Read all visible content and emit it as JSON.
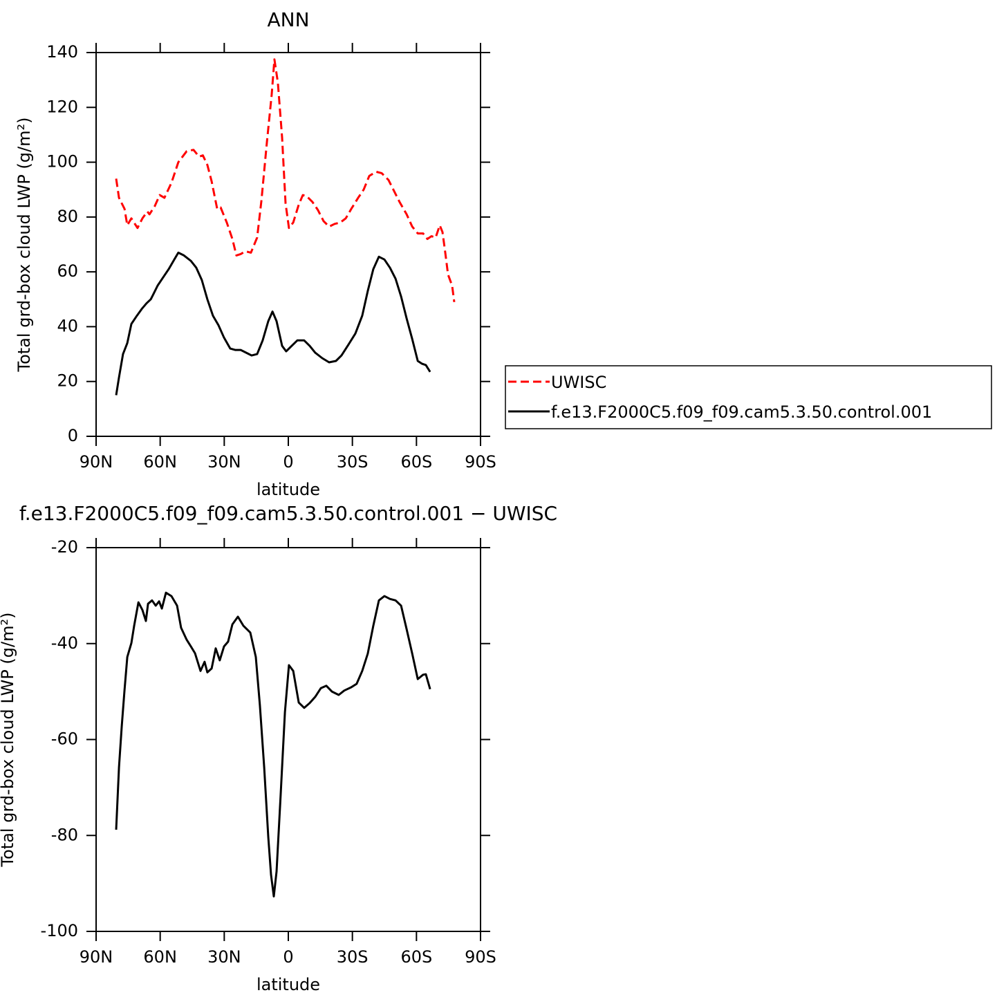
{
  "chart_data": [
    {
      "type": "line",
      "title": "ANN",
      "xlabel": "latitude",
      "ylabel": "Total grd-box cloud LWP (g/m²)",
      "xlim": [
        90,
        -90
      ],
      "xticks": [
        {
          "value": 90,
          "label": "90N"
        },
        {
          "value": 60,
          "label": "60N"
        },
        {
          "value": 30,
          "label": "30N"
        },
        0,
        {
          "value": -30,
          "label": "30S"
        },
        {
          "value": -60,
          "label": "60S"
        },
        {
          "value": -90,
          "label": "90S"
        }
      ],
      "ylim": [
        0,
        140
      ],
      "yticks": [
        0,
        20,
        40,
        60,
        80,
        100,
        120,
        140
      ],
      "legend": "right",
      "series": [
        {
          "name": "UWISC",
          "color": "#ff0000",
          "dash": true,
          "x": [
            80.6,
            79.3,
            76.7,
            75.4,
            73.5,
            70.6,
            68.3,
            66,
            65,
            62.5,
            60.2,
            58,
            54.7,
            51.5,
            47.6,
            44.4,
            41.8,
            40,
            37.9,
            35.9,
            33.3,
            31.7,
            28.8,
            26.2,
            24.3,
            22.3,
            20.1,
            17.5,
            14.6,
            12.6,
            10,
            7.8,
            6.5,
            4.9,
            2.9,
            1.3,
            -0.3,
            -2.3,
            -4.9,
            -6.8,
            -8.7,
            -11.3,
            -13.9,
            -16.5,
            -19.1,
            -21.7,
            -24.3,
            -26.9,
            -29.5,
            -32.7,
            -35.3,
            -37.9,
            -41.1,
            -43.7,
            -46.9,
            -49.5,
            -52.1,
            -55.4,
            -58,
            -60.6,
            -63.1,
            -65.1,
            -67,
            -69,
            -70.9,
            -72.2,
            -73.5,
            -74.8,
            -76.7,
            -77.7
          ],
          "values": [
            94,
            87,
            83,
            77,
            79.5,
            76,
            79.5,
            82,
            81,
            84,
            88,
            87,
            92.5,
            100,
            104,
            104.5,
            102,
            102.5,
            99,
            93,
            83,
            83.5,
            78,
            72,
            66,
            66.5,
            67.5,
            67,
            72.5,
            86,
            107.5,
            124.5,
            137.5,
            129,
            109,
            85,
            76,
            78,
            84.5,
            88,
            87.5,
            85.5,
            82.5,
            78.5,
            76.5,
            77.5,
            78,
            79.5,
            83,
            87,
            90,
            95,
            96.5,
            96,
            93.5,
            89.5,
            85.5,
            81,
            76.5,
            74,
            74,
            72,
            73,
            72.5,
            77,
            74.5,
            67,
            59,
            55,
            49
          ]
        },
        {
          "name": "f.e13.F2000C5.f09_f09.cam5.3.50.control.001",
          "color": "#000000",
          "dash": false,
          "x": [
            80.6,
            79.3,
            77.4,
            75.4,
            73.5,
            70.9,
            68.6,
            66.4,
            64.4,
            63.1,
            61.2,
            58.6,
            56,
            53.4,
            51.5,
            48.9,
            45.6,
            43.1,
            40.5,
            37.9,
            35.3,
            32.7,
            30.1,
            27.2,
            24.9,
            22.3,
            19.7,
            17.2,
            14.6,
            12,
            9.4,
            7.4,
            5.5,
            2.9,
            1,
            -1.6,
            -4.2,
            -7.4,
            -10,
            -12.6,
            -15.9,
            -19.1,
            -22.3,
            -24.9,
            -28.2,
            -31.4,
            -34.6,
            -37.2,
            -39.8,
            -42.4,
            -45,
            -47.6,
            -50.2,
            -52.8,
            -55.4,
            -58,
            -60.6,
            -62.5,
            -64.4,
            -66.4
          ],
          "values": [
            15,
            21.5,
            30,
            34,
            41,
            44,
            46.5,
            48.5,
            50,
            52,
            55,
            58,
            61,
            64.5,
            67,
            66,
            64,
            61.5,
            57,
            50,
            44,
            40.5,
            36,
            32,
            31.5,
            31.5,
            30.5,
            29.5,
            30,
            35,
            42,
            45.5,
            42,
            33,
            31,
            33,
            35,
            35,
            33,
            30.5,
            28.5,
            27,
            27.5,
            29.5,
            33.5,
            37.5,
            44,
            53,
            61,
            65.5,
            64.5,
            61.5,
            57.5,
            51,
            43,
            35.5,
            27.5,
            26.5,
            26,
            23.5
          ]
        }
      ]
    },
    {
      "type": "line",
      "title": "f.e13.F2000C5.f09_f09.cam5.3.50.control.001 − UWISC",
      "xlabel": "latitude",
      "ylabel": "Total grd-box cloud LWP (g/m²)",
      "xlim": [
        90,
        -90
      ],
      "xticks": [
        {
          "value": 90,
          "label": "90N"
        },
        {
          "value": 60,
          "label": "60N"
        },
        {
          "value": 30,
          "label": "30N"
        },
        0,
        {
          "value": -30,
          "label": "30S"
        },
        {
          "value": -60,
          "label": "60S"
        },
        {
          "value": -90,
          "label": "90S"
        }
      ],
      "ylim": [
        -100,
        -20
      ],
      "yticks": [
        -100,
        -80,
        -60,
        -40,
        -20
      ],
      "color": "#000000",
      "x": [
        80.6,
        79.3,
        78,
        76.7,
        75.4,
        73.5,
        72.2,
        70.2,
        68.3,
        66.7,
        65.7,
        63.8,
        62.1,
        60.5,
        59.2,
        57.3,
        54.7,
        52.1,
        50.2,
        47.6,
        45.6,
        43.7,
        41.1,
        39.2,
        37.9,
        35.9,
        34,
        32.1,
        30.1,
        28.2,
        26.2,
        23.6,
        21,
        17.8,
        15.2,
        13.3,
        11.3,
        9.4,
        8.1,
        6.8,
        5.5,
        3.6,
        1.6,
        -0.3,
        -2.3,
        -4.9,
        -7.4,
        -10,
        -12.6,
        -15.2,
        -17.8,
        -20.4,
        -23.6,
        -26.2,
        -29.5,
        -32,
        -34.6,
        -37.2,
        -39.8,
        -42.4,
        -45,
        -47.6,
        -50.2,
        -52.8,
        -55.4,
        -58,
        -60.6,
        -63.1,
        -64.4,
        -66.4
      ],
      "values": [
        -78.8,
        -65.8,
        -57.2,
        -49.7,
        -42.8,
        -39.9,
        -36.3,
        -31.4,
        -33,
        -35.3,
        -31.7,
        -31,
        -32.1,
        -31.2,
        -32.7,
        -29.4,
        -30.1,
        -32.1,
        -36.7,
        -39.2,
        -40.6,
        -42,
        -45.7,
        -43.8,
        -46,
        -45.2,
        -41,
        -43.5,
        -40.6,
        -39.6,
        -36,
        -34.4,
        -36.3,
        -37.7,
        -42.8,
        -52.9,
        -65.8,
        -80.3,
        -88.2,
        -92.7,
        -87.5,
        -71.6,
        -54.3,
        -44.5,
        -45.7,
        -52.3,
        -53.4,
        -52.4,
        -51.1,
        -49.3,
        -48.8,
        -50,
        -50.7,
        -49.8,
        -49.1,
        -48.4,
        -45.7,
        -42.1,
        -36.3,
        -31,
        -30.1,
        -30.7,
        -31,
        -32.1,
        -37,
        -42.1,
        -47.4,
        -46.5,
        -46.4,
        -49.5
      ]
    }
  ]
}
